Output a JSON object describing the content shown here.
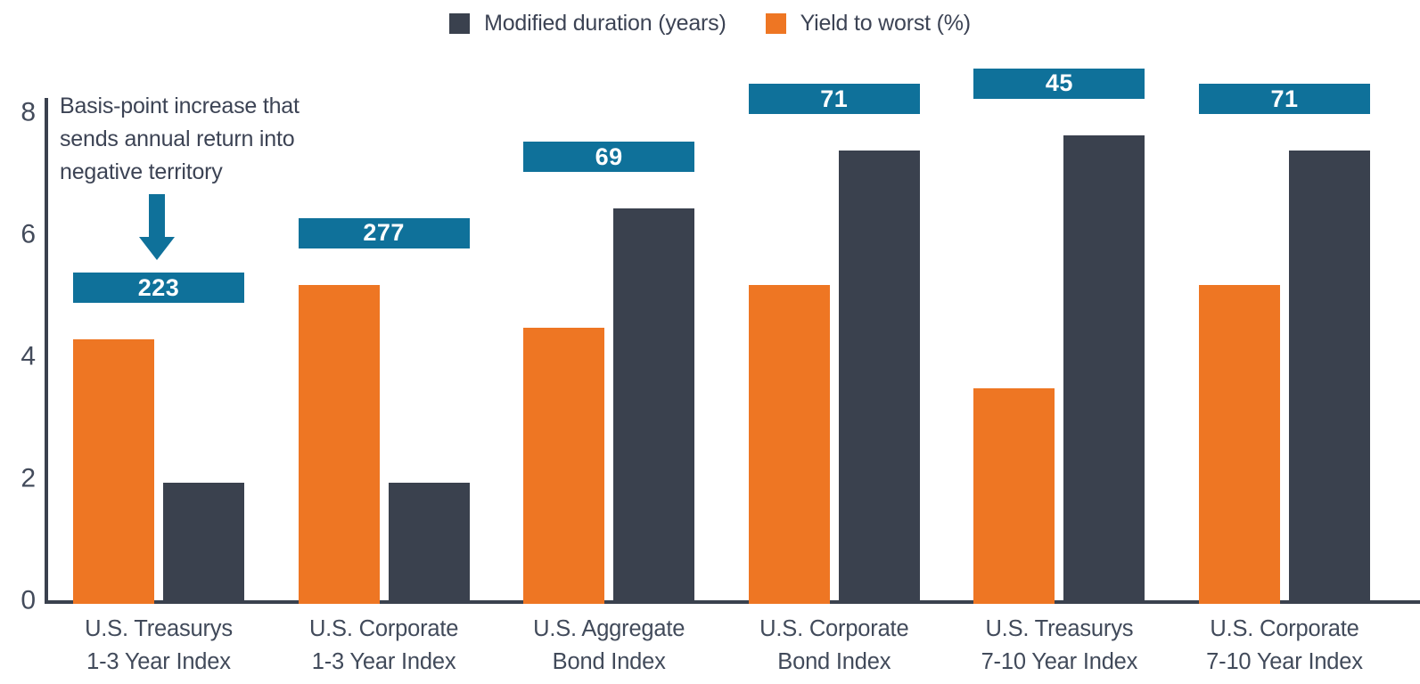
{
  "annotation": {
    "lines": [
      "Basis-point increase that",
      "sends annual return into",
      "negative territory"
    ]
  },
  "chart_data": {
    "type": "bar",
    "title": "",
    "xlabel": "",
    "ylabel": "",
    "ylim": [
      0,
      8
    ],
    "yticks": [
      0,
      2,
      4,
      6,
      8
    ],
    "grid": false,
    "legend_position": "top-center",
    "categories": [
      [
        "U.S. Treasurys",
        "1-3 Year Index"
      ],
      [
        "U.S. Corporate",
        "1-3 Year Index"
      ],
      [
        "U.S. Aggregate",
        "Bond Index"
      ],
      [
        "U.S. Corporate",
        "Bond Index"
      ],
      [
        "U.S. Treasurys",
        "7-10 Year Index"
      ],
      [
        "U.S. Corporate",
        "7-10 Year Index"
      ]
    ],
    "series": [
      {
        "name": "Modified duration (years)",
        "color": "#3A414E",
        "values": [
          1.95,
          1.95,
          6.45,
          7.4,
          7.65,
          7.4
        ]
      },
      {
        "name": "Yield to worst (%)",
        "color": "#EE7623",
        "values": [
          4.3,
          5.2,
          4.5,
          5.2,
          3.5,
          5.2
        ]
      }
    ],
    "bp_increase_labels": [
      "223",
      "277",
      "69",
      "71",
      "45",
      "71"
    ],
    "badge_color": "#0F719A",
    "arrow_color": "#0F719A",
    "axis_color": "#3A414E",
    "text_color": "#3C4354"
  }
}
